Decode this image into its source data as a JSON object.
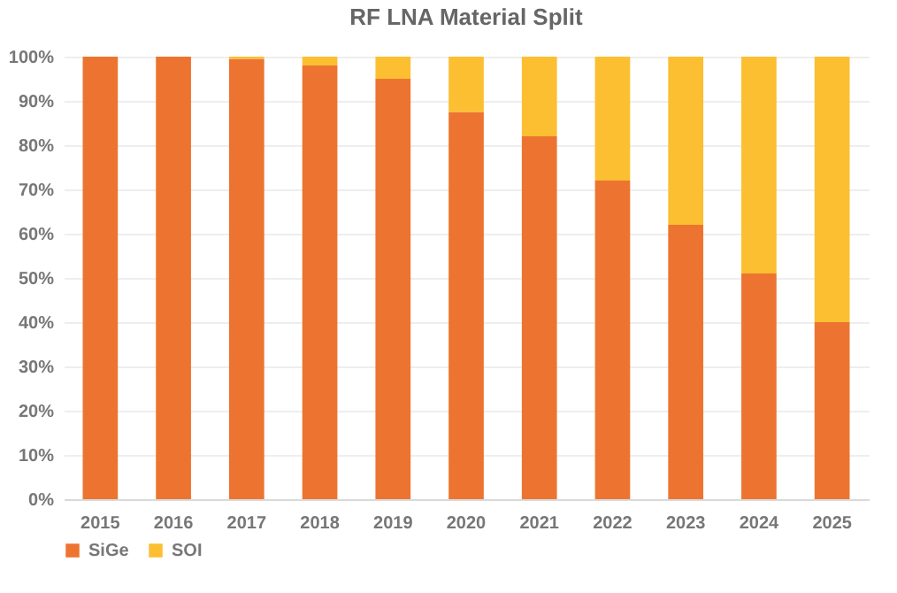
{
  "chart_data": {
    "type": "bar",
    "title": "RF LNA Material Split",
    "stacked": true,
    "categories": [
      "2015",
      "2016",
      "2017",
      "2018",
      "2019",
      "2020",
      "2021",
      "2022",
      "2023",
      "2024",
      "2025"
    ],
    "series": [
      {
        "name": "SiGe",
        "color": "#ed7430",
        "values": [
          100,
          100,
          99.5,
          98,
          95,
          87.5,
          82,
          72,
          62,
          51,
          40
        ]
      },
      {
        "name": "SOI",
        "color": "#fbbf31",
        "values": [
          0,
          0,
          0.5,
          2,
          5,
          12.5,
          18,
          28,
          38,
          49,
          60
        ]
      }
    ],
    "ylim": [
      0,
      100
    ],
    "yticks": [
      {
        "value": 0,
        "label": "0%"
      },
      {
        "value": 10,
        "label": "10%"
      },
      {
        "value": 20,
        "label": "20%"
      },
      {
        "value": 30,
        "label": "30%"
      },
      {
        "value": 40,
        "label": "40%"
      },
      {
        "value": 50,
        "label": "50%"
      },
      {
        "value": 60,
        "label": "60%"
      },
      {
        "value": 70,
        "label": "70%"
      },
      {
        "value": 80,
        "label": "80%"
      },
      {
        "value": 90,
        "label": "90%"
      },
      {
        "value": 100,
        "label": "100%"
      }
    ],
    "grid": "y",
    "legend": "bottom"
  }
}
